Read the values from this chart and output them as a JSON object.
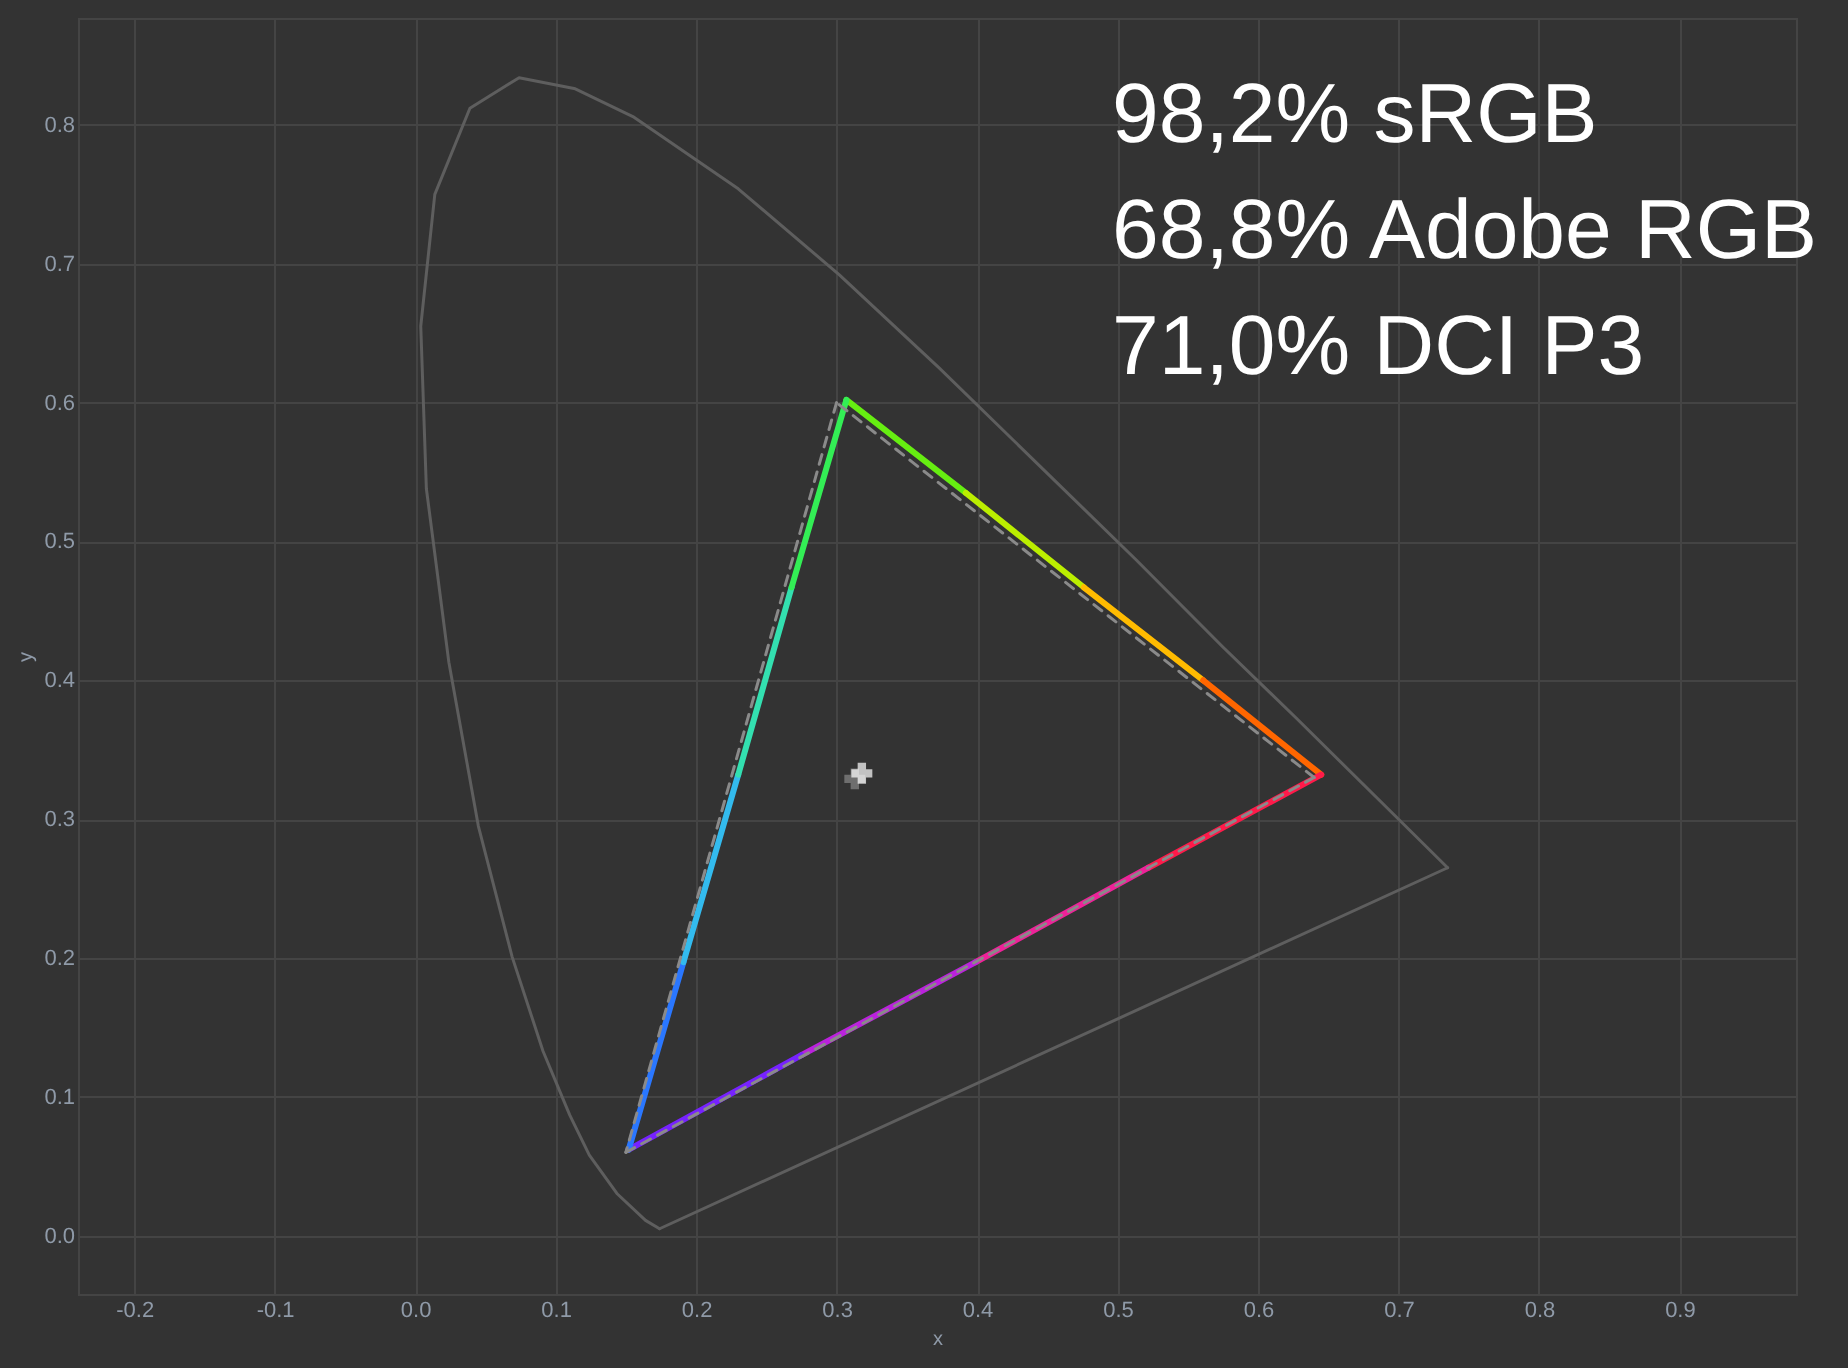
{
  "chart_data": {
    "type": "line",
    "xlabel": "x",
    "ylabel": "y",
    "xlim": [
      -0.24,
      0.983
    ],
    "ylim": [
      -0.042,
      0.877
    ],
    "xticks": [
      -0.2,
      -0.1,
      {
        "value": 0,
        "label": "0.0"
      },
      0.1,
      0.2,
      0.3,
      0.4,
      0.5,
      0.6,
      0.7,
      0.8,
      0.9
    ],
    "yticks": [
      {
        "value": 0,
        "label": "0.0"
      },
      0.1,
      0.2,
      0.3,
      0.4,
      0.5,
      0.6,
      0.7,
      0.8
    ],
    "grid": true,
    "annotations": [
      "98,2% sRGB",
      "68,8% Adobe RGB",
      "71,0% DCI P3"
    ],
    "series": [
      {
        "color": "#5e5e5e",
        "x": [
          0.174,
          0.164,
          0.144,
          0.124,
          0.11,
          0.091,
          0.069,
          0.045,
          0.024,
          0.008,
          0.004,
          0.014,
          0.039,
          0.074,
          0.114,
          0.155,
          0.23,
          0.302,
          0.373,
          0.444,
          0.513,
          0.575,
          0.627,
          0.692,
          0.719,
          0.735
        ],
        "values": [
          0.005,
          0.011,
          0.03,
          0.058,
          0.087,
          0.133,
          0.201,
          0.295,
          0.413,
          0.538,
          0.655,
          0.75,
          0.812,
          0.834,
          0.826,
          0.806,
          0.754,
          0.692,
          0.625,
          0.555,
          0.487,
          0.424,
          0.373,
          0.308,
          0.281,
          0.265
        ]
      },
      {
        "color": "#5e5e5e",
        "x": [
          0.735,
          0.174
        ],
        "values": [
          0.265,
          0.005
        ]
      },
      {
        "color": "#66ee11",
        "x": [
          0.307,
          0.392
        ],
        "values": [
          0.602,
          0.535
        ]
      },
      {
        "color": "#bbee00",
        "x": [
          0.392,
          0.476
        ],
        "values": [
          0.535,
          0.467
        ]
      },
      {
        "color": "#ffbb00",
        "x": [
          0.476,
          0.561
        ],
        "values": [
          0.467,
          0.4
        ]
      },
      {
        "color": "#ff6600",
        "x": [
          0.561,
          0.645
        ],
        "values": [
          0.4,
          0.332
        ]
      },
      {
        "color": "#ff1a4a",
        "x": [
          0.645,
          0.522
        ],
        "values": [
          0.332,
          0.265
        ]
      },
      {
        "color": "#ee2299",
        "x": [
          0.522,
          0.399
        ],
        "values": [
          0.265,
          0.197
        ]
      },
      {
        "color": "#bb22dd",
        "x": [
          0.399,
          0.275
        ],
        "values": [
          0.197,
          0.13
        ]
      },
      {
        "color": "#7722ff",
        "x": [
          0.275,
          0.152
        ],
        "values": [
          0.13,
          0.062
        ]
      },
      {
        "color": "#2a77ff",
        "x": [
          0.152,
          0.191
        ],
        "values": [
          0.062,
          0.197
        ]
      },
      {
        "color": "#33bbee",
        "x": [
          0.191,
          0.23
        ],
        "values": [
          0.197,
          0.332
        ]
      },
      {
        "color": "#33e0b0",
        "x": [
          0.23,
          0.268
        ],
        "values": [
          0.332,
          0.467
        ]
      },
      {
        "color": "#33ee55",
        "x": [
          0.268,
          0.307
        ],
        "values": [
          0.467,
          0.602
        ]
      },
      {
        "color": "#8a8a8a",
        "line_style": "dashed",
        "x": [
          0.64,
          0.3
        ],
        "values": [
          0.33,
          0.6
        ]
      },
      {
        "color": "#8a8a8a",
        "line_style": "dashed",
        "x": [
          0.3,
          0.15
        ],
        "values": [
          0.6,
          0.06
        ]
      },
      {
        "color": "#8a8a8a",
        "line_style": "dashed",
        "x": [
          0.15,
          0.64
        ],
        "values": [
          0.06,
          0.33
        ]
      },
      {
        "type": "scatter",
        "marker": "cross",
        "color": "#888888",
        "x": [
          0.313
        ],
        "values": [
          0.329
        ]
      },
      {
        "type": "scatter",
        "marker": "cross",
        "color": "#ffffff",
        "x": [
          0.318
        ],
        "values": [
          0.333
        ]
      }
    ]
  }
}
